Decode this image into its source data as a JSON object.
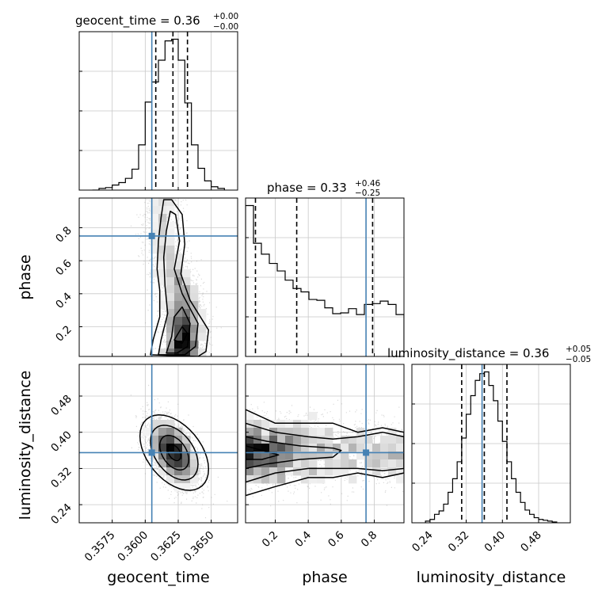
{
  "chart_data": {
    "type": "corner",
    "parameters": [
      "geocent_time",
      "phase",
      "luminosity_distance"
    ],
    "axes": {
      "geocent_time": {
        "range": [
          0.355,
          0.367
        ],
        "ticks": [
          "0.3575",
          "0.3600",
          "0.3625",
          "0.3650"
        ]
      },
      "phase": {
        "range": [
          0.02,
          0.98
        ],
        "ticks": [
          "0.2",
          "0.4",
          "0.6",
          "0.8"
        ]
      },
      "luminosity_distance": {
        "range": [
          0.2,
          0.55
        ],
        "ticks": [
          "0.24",
          "0.32",
          "0.40",
          "0.48"
        ]
      }
    },
    "titles": {
      "geocent_time": {
        "name": "geocent_time",
        "eq": " = 0.36",
        "sup": "+0.00",
        "sub": "−0.00"
      },
      "phase": {
        "name": "phase",
        "eq": " = 0.33",
        "sup": "+0.46",
        "sub": "−0.25"
      },
      "luminosity_distance": {
        "name": "luminosity_distance",
        "eq": " = 0.36",
        "sup": "+0.05",
        "sub": "−0.05"
      }
    },
    "truths": {
      "geocent_time": 0.3605,
      "phase": 0.75,
      "luminosity_distance": 0.355
    },
    "quantiles": {
      "geocent_time": [
        0.3608,
        0.3621,
        0.3632
      ],
      "phase": [
        0.08,
        0.33,
        0.79
      ],
      "luminosity_distance": [
        0.31,
        0.36,
        0.41
      ]
    },
    "histograms": {
      "geocent_time": {
        "edges": [
          0.356,
          0.3565,
          0.357,
          0.3575,
          0.358,
          0.3585,
          0.359,
          0.3595,
          0.36,
          0.3605,
          0.361,
          0.3615,
          0.362,
          0.3625,
          0.363,
          0.3635,
          0.364,
          0.3645,
          0.365,
          0.3655,
          0.366
        ],
        "counts": [
          0,
          2,
          3,
          6,
          9,
          14,
          25,
          54,
          105,
          129,
          155,
          178,
          180,
          155,
          104,
          54,
          26,
          11,
          4,
          2
        ]
      },
      "phase": {
        "edges": [
          0.02,
          0.068,
          0.116,
          0.164,
          0.212,
          0.26,
          0.308,
          0.356,
          0.404,
          0.452,
          0.5,
          0.548,
          0.596,
          0.644,
          0.692,
          0.74,
          0.788,
          0.836,
          0.884,
          0.932,
          0.98
        ],
        "counts": [
          180,
          135,
          122,
          111,
          102,
          91,
          81,
          77,
          68,
          67,
          58,
          51,
          52,
          57,
          50,
          62,
          63,
          66,
          62,
          50
        ]
      },
      "luminosity_distance": {
        "edges": [
          0.23,
          0.24,
          0.25,
          0.26,
          0.27,
          0.28,
          0.29,
          0.3,
          0.31,
          0.32,
          0.33,
          0.34,
          0.35,
          0.36,
          0.37,
          0.38,
          0.39,
          0.4,
          0.41,
          0.42,
          0.43,
          0.44,
          0.45,
          0.46,
          0.47,
          0.48,
          0.49,
          0.5,
          0.51,
          0.52
        ],
        "counts": [
          2,
          4,
          10,
          14,
          22,
          36,
          52,
          72,
          100,
          128,
          150,
          168,
          176,
          178,
          162,
          144,
          120,
          96,
          72,
          52,
          36,
          24,
          15,
          10,
          6,
          4,
          3,
          2,
          1
        ]
      }
    }
  }
}
